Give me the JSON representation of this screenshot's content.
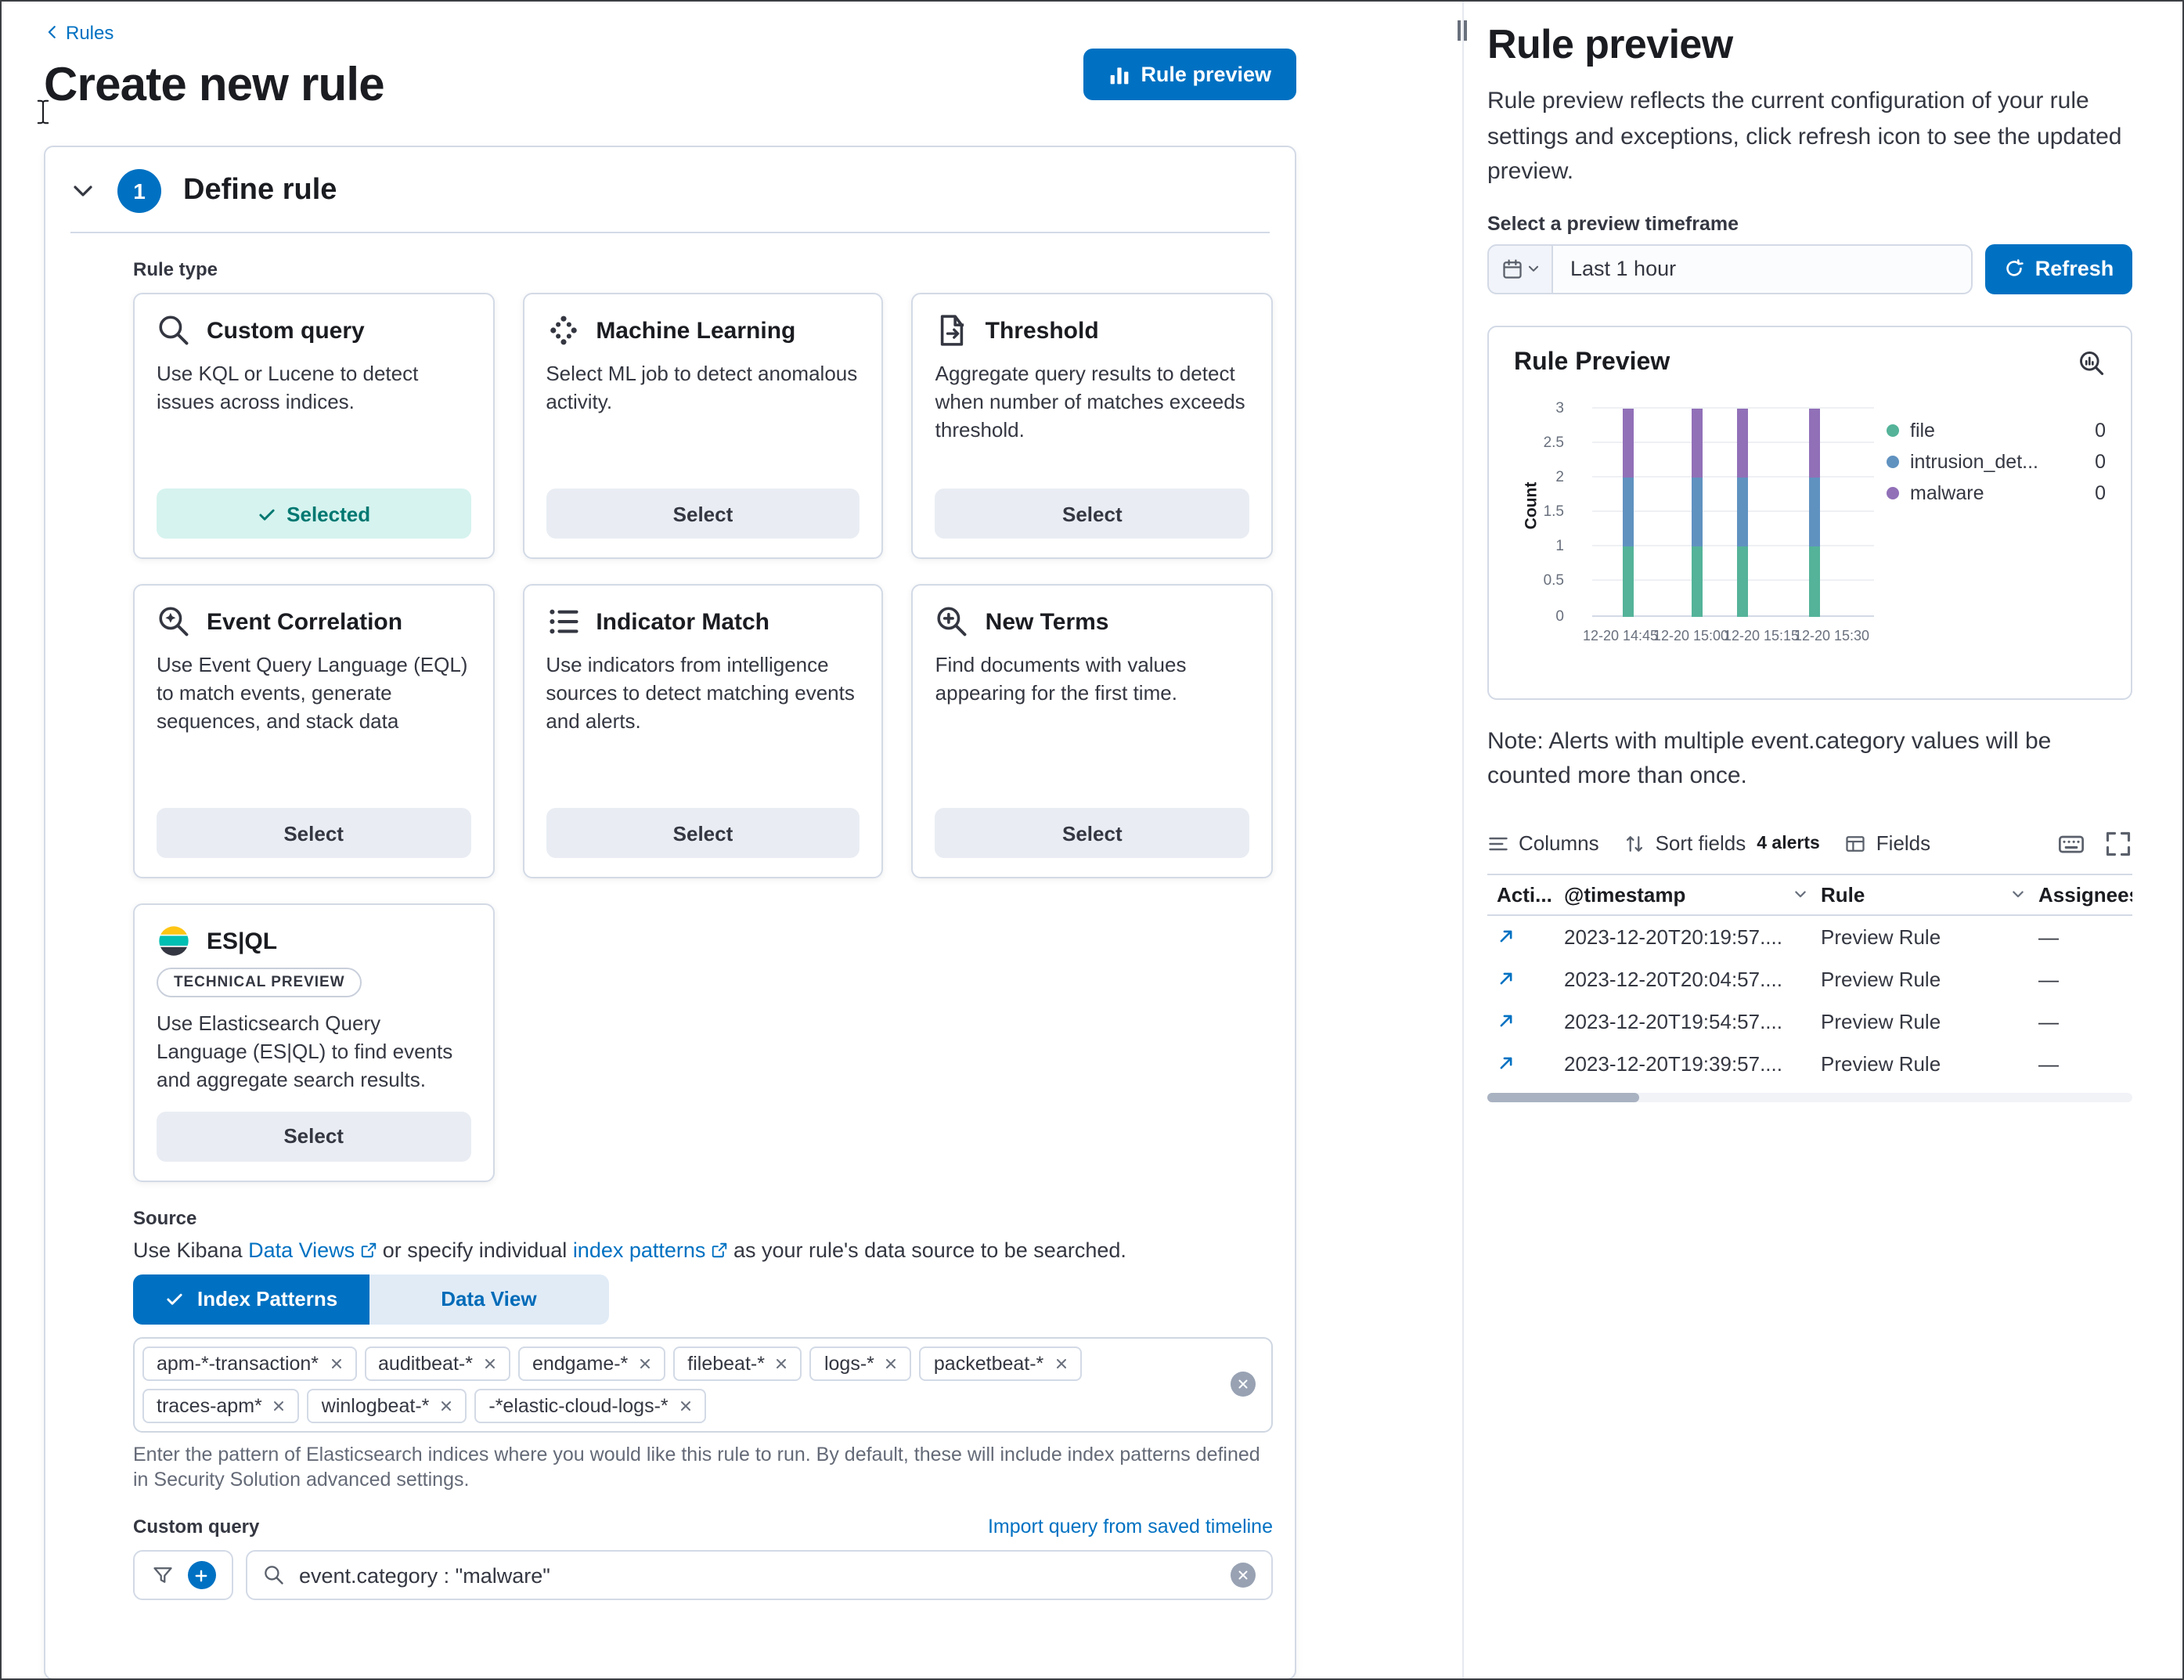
{
  "colors": {
    "primary": "#0071c2",
    "link": "#0071c2",
    "heading": "#1a1c21",
    "text": "#343741",
    "border": "#d3dae6",
    "selected_bg": "#d6f3ef",
    "selected_text": "#007871"
  },
  "breadcrumb": {
    "back_label": "Rules"
  },
  "page": {
    "title": "Create new rule",
    "rule_preview_button": "Rule preview"
  },
  "define_rule": {
    "step_number": "1",
    "heading": "Define rule",
    "rule_type_label": "Rule type",
    "cards": [
      {
        "title": "Custom query",
        "description": "Use KQL or Lucene to detect issues across indices.",
        "button": "Selected",
        "selected": true
      },
      {
        "title": "Machine Learning",
        "description": "Select ML job to detect anomalous activity.",
        "button": "Select"
      },
      {
        "title": "Threshold",
        "description": "Aggregate query results to detect when number of matches exceeds threshold.",
        "button": "Select"
      },
      {
        "title": "Event Correlation",
        "description": "Use Event Query Language (EQL) to match events, generate sequences, and stack data",
        "button": "Select"
      },
      {
        "title": "Indicator Match",
        "description": "Use indicators from intelligence sources to detect matching events and alerts.",
        "button": "Select"
      },
      {
        "title": "New Terms",
        "description": "Find documents with values appearing for the first time.",
        "button": "Select"
      },
      {
        "title": "ES|QL",
        "badge": "TECHNICAL PREVIEW",
        "description": "Use Elasticsearch Query Language (ES|QL) to find events and aggregate search results.",
        "button": "Select"
      }
    ],
    "source": {
      "label": "Source",
      "intro_prefix": "Use Kibana ",
      "data_views_link": "Data Views",
      "intro_middle": " or specify individual ",
      "index_patterns_link": "index patterns",
      "intro_suffix": " as your rule's data source to be searched.",
      "toggle": {
        "index_patterns": "Index Patterns",
        "data_view": "Data View"
      },
      "index_tags": [
        "apm-*-transaction*",
        "auditbeat-*",
        "endgame-*",
        "filebeat-*",
        "logs-*",
        "packetbeat-*",
        "traces-apm*",
        "winlogbeat-*",
        "-*elastic-cloud-logs-*"
      ],
      "help_text": "Enter the pattern of Elasticsearch indices where you would like this rule to run. By default, these will include index patterns defined in Security Solution advanced settings."
    },
    "custom_query": {
      "label": "Custom query",
      "import_link": "Import query from saved timeline",
      "query_value": "event.category : \"malware\""
    }
  },
  "preview": {
    "title": "Rule preview",
    "description": "Rule preview reflects the current configuration of your rule settings and exceptions, click refresh icon to see the updated preview.",
    "timeframe_label": "Select a preview timeframe",
    "timeframe_value": "Last 1 hour",
    "refresh_label": "Refresh",
    "note": "Note: Alerts with multiple event.category values will be counted more than once.",
    "toolbar": {
      "columns": "Columns",
      "sort_fields": "Sort fields",
      "alerts_count": "4 alerts",
      "fields": "Fields"
    },
    "table": {
      "headers": {
        "actions": "Acti...",
        "timestamp": "@timestamp",
        "rule": "Rule",
        "assignees": "Assignees"
      },
      "rows": [
        {
          "timestamp": "2023-12-20T20:19:57....",
          "rule": "Preview Rule",
          "assignees": "—"
        },
        {
          "timestamp": "2023-12-20T20:04:57....",
          "rule": "Preview Rule",
          "assignees": "—"
        },
        {
          "timestamp": "2023-12-20T19:54:57....",
          "rule": "Preview Rule",
          "assignees": "—"
        },
        {
          "timestamp": "2023-12-20T19:39:57....",
          "rule": "Preview Rule",
          "assignees": "—"
        }
      ]
    }
  },
  "chart_data": {
    "type": "bar",
    "stacked": true,
    "title": "Rule Preview",
    "categories": [
      "12-20 14:45",
      "12-20 15:00",
      "12-20 15:15",
      "12-20 15:30"
    ],
    "series": [
      {
        "name": "file",
        "color": "#54b399",
        "values": [
          1,
          1,
          1,
          1
        ]
      },
      {
        "name": "intrusion_det...",
        "color": "#6092c0",
        "values": [
          1,
          1,
          1,
          1
        ]
      },
      {
        "name": "malware",
        "color": "#9170b8",
        "values": [
          1,
          1,
          1,
          1
        ]
      }
    ],
    "ylabel": "Count",
    "xlabel": "",
    "ylim": [
      0,
      3
    ],
    "yticks": [
      0,
      0.5,
      1,
      1.5,
      2,
      2.5,
      3
    ],
    "legend": [
      {
        "label": "file",
        "value": 0
      },
      {
        "label": "intrusion_det...",
        "value": 0
      },
      {
        "label": "malware",
        "value": 0
      }
    ],
    "legend_position": "right",
    "grid": true,
    "bar_positions_pct": [
      12.5,
      37,
      53.5,
      79
    ],
    "xlabel_positions_pct": [
      10,
      35,
      60,
      85
    ]
  }
}
